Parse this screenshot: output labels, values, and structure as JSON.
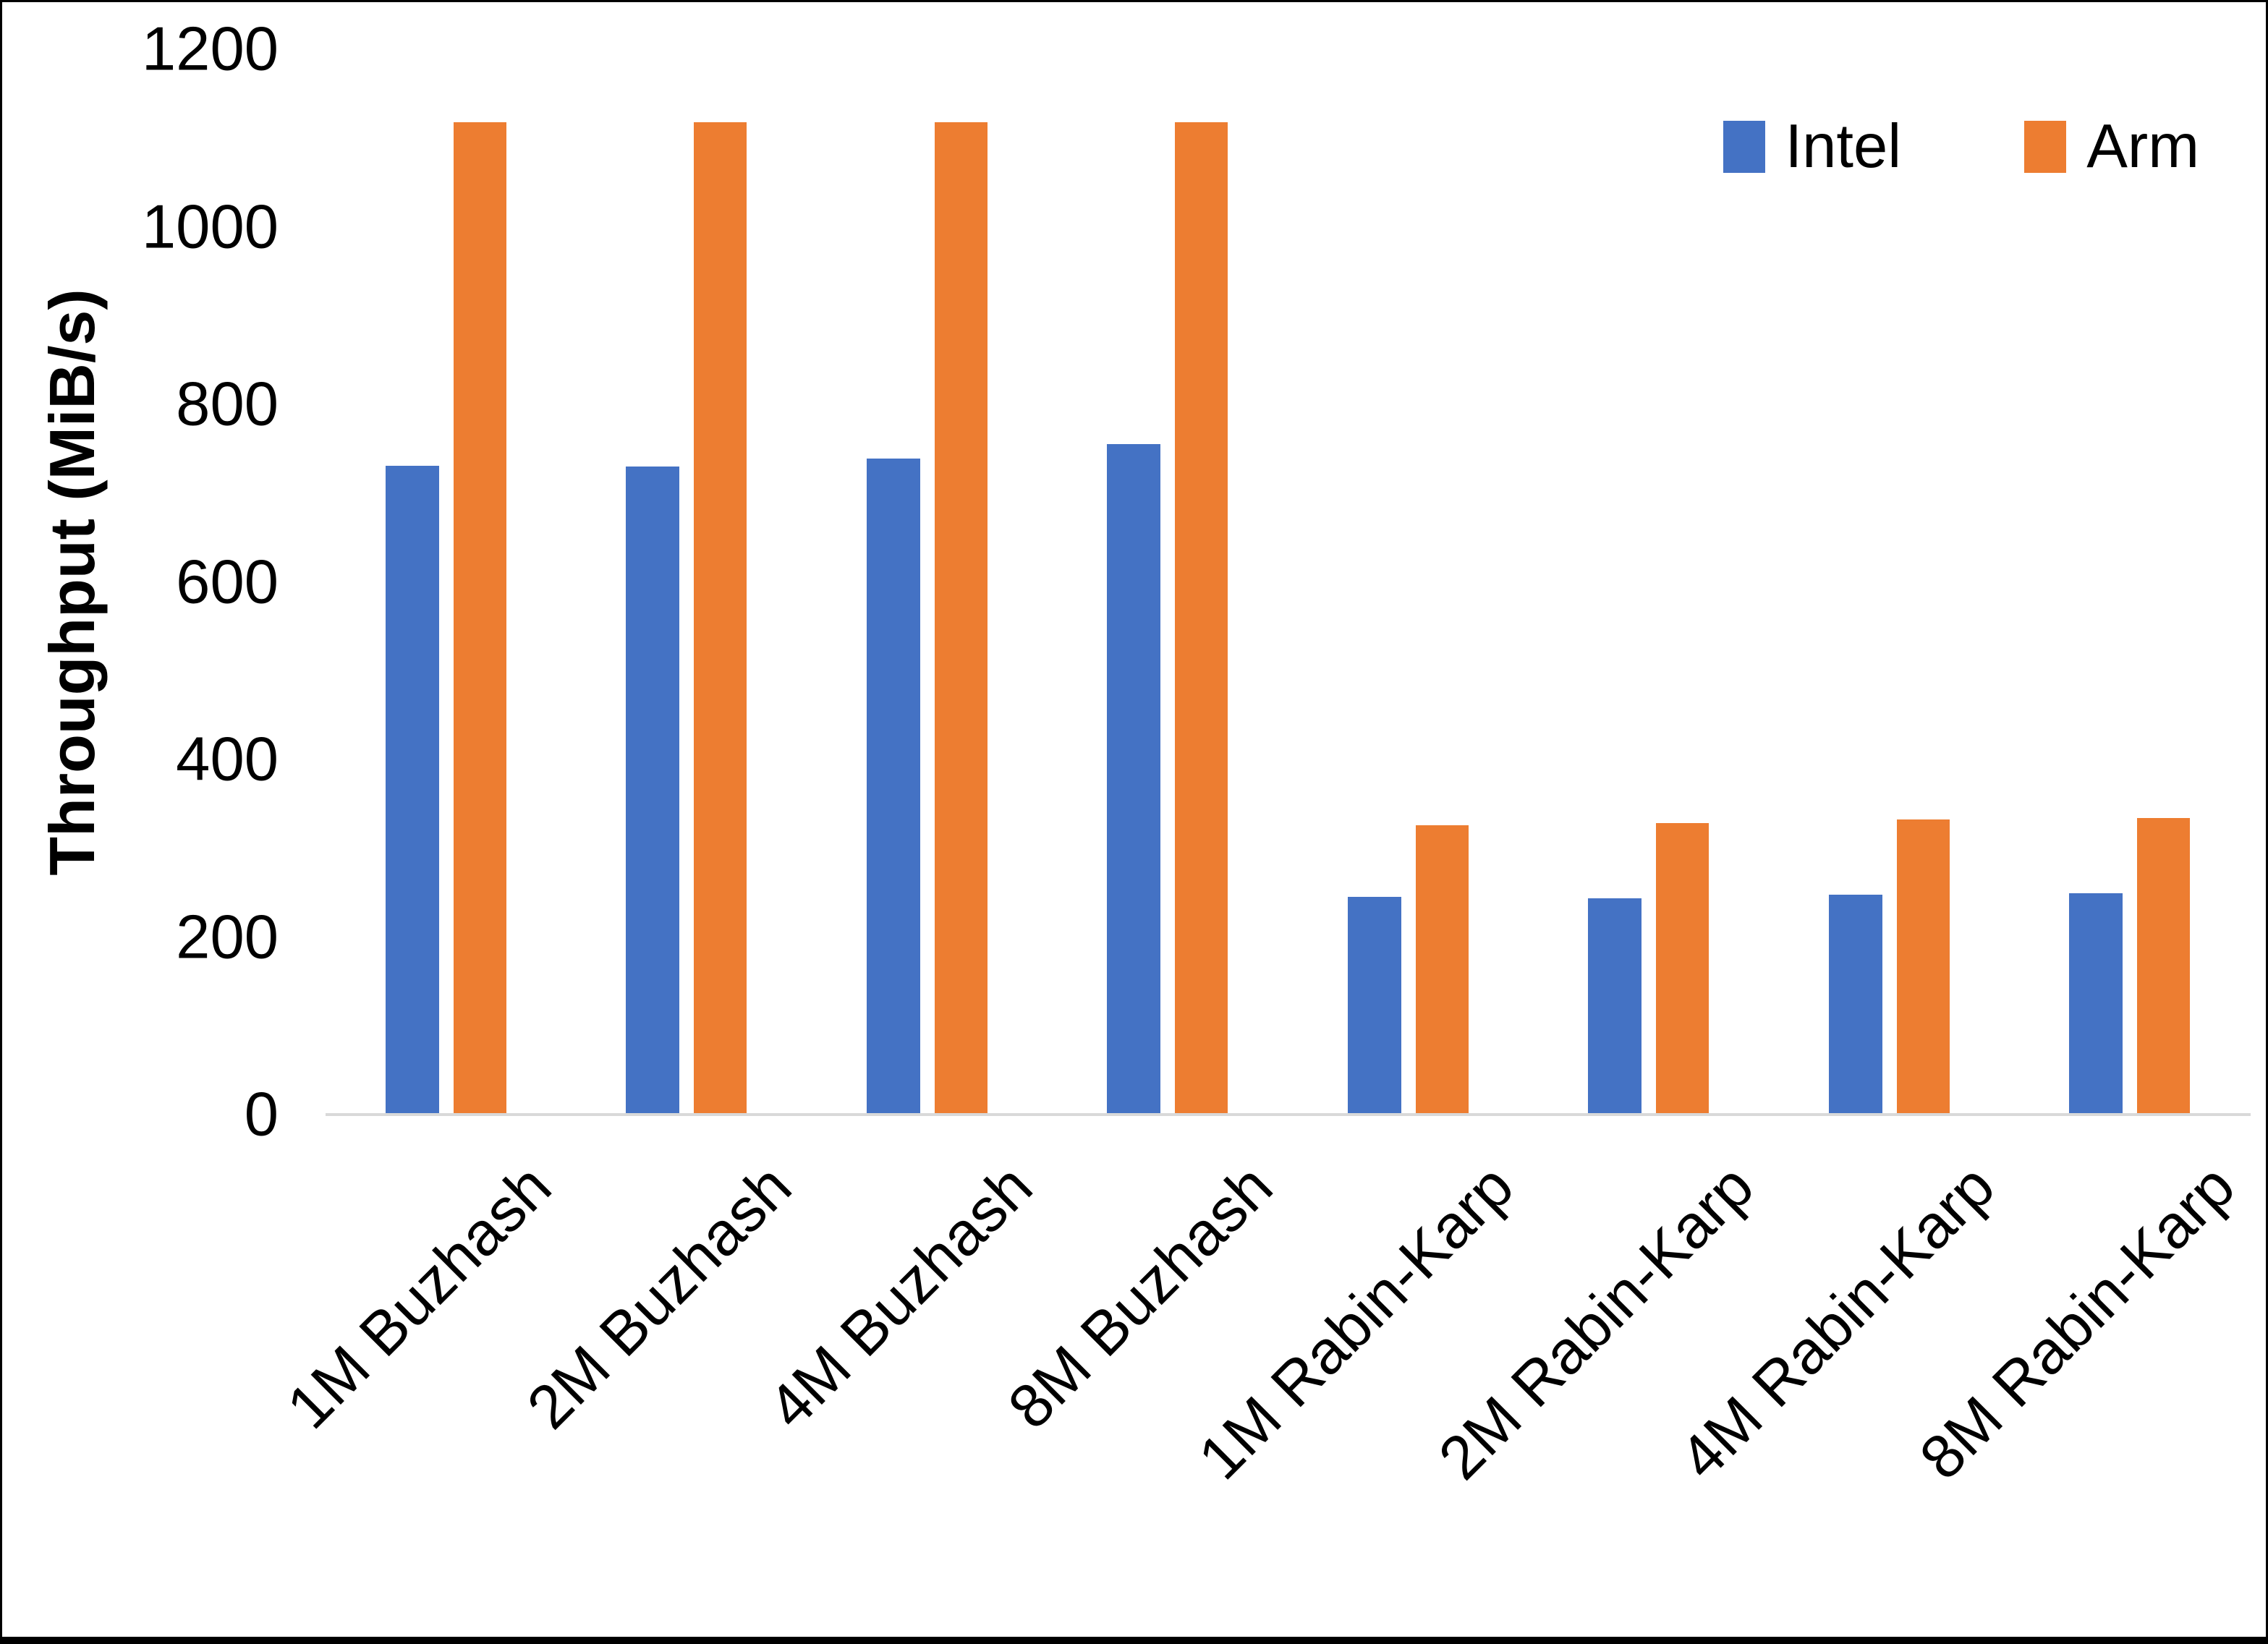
{
  "chart_data": {
    "type": "bar",
    "title": "",
    "xlabel": "",
    "ylabel": "Throughput (MiB/s)",
    "ylim": [
      0,
      1200
    ],
    "yticks": [
      0,
      200,
      400,
      600,
      800,
      1000,
      1200
    ],
    "grid": false,
    "legend_position": "top-right",
    "categories": [
      "1M Buzhash",
      "2M Buzhash",
      "4M Buzhash",
      "8M Buzhash",
      "1M Rabin-Karp",
      "2M Rabin-Karp",
      "4M Rabin-Karp",
      "8M Rabin-Karp"
    ],
    "series": [
      {
        "name": "Intel",
        "color": "#4472C4",
        "values": [
          731,
          730,
          739,
          755,
          245,
          244,
          248,
          249
        ]
      },
      {
        "name": "Arm",
        "color": "#ED7D31",
        "values": [
          1118,
          1118,
          1118,
          1118,
          326,
          328,
          332,
          334
        ]
      }
    ],
    "axis_line_color": "#D9D9D9",
    "text_color": "#000000"
  }
}
